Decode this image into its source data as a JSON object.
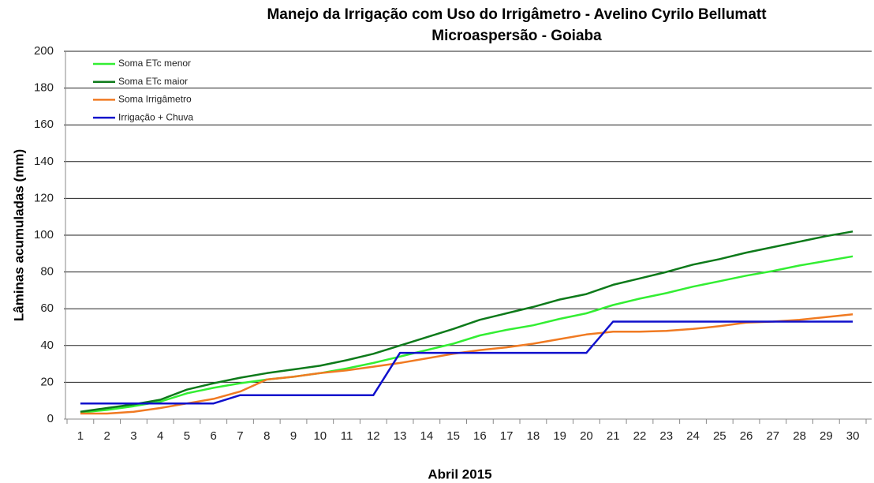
{
  "chart_data": {
    "type": "line",
    "title": "Manejo da Irrigação com Uso do Irrigâmetro - Avelino Cyrilo Bellumatt",
    "subtitle": "Microaspersão - Goiaba",
    "x_label": "Abril 2015",
    "y_label": "Lâminas acumuladas (mm)",
    "categories": [
      "1",
      "2",
      "3",
      "4",
      "5",
      "6",
      "7",
      "8",
      "9",
      "10",
      "11",
      "12",
      "13",
      "14",
      "15",
      "16",
      "17",
      "18",
      "19",
      "20",
      "21",
      "22",
      "23",
      "24",
      "25",
      "26",
      "27",
      "28",
      "29",
      "30"
    ],
    "series": [
      {
        "name": "Soma ETc menor",
        "color": "#33ee33",
        "values": [
          3.5,
          5,
          7,
          9.5,
          14,
          17,
          19.5,
          21.5,
          23,
          25,
          27.5,
          30.5,
          34,
          37.5,
          41,
          45.5,
          48.5,
          51,
          54.5,
          57.5,
          62,
          65.5,
          68.5,
          72,
          75,
          78,
          80.5,
          83.5,
          86,
          88.5
        ]
      },
      {
        "name": "Soma ETc maior",
        "color": "#0d7a1a",
        "values": [
          4,
          6,
          8,
          10.5,
          16,
          19.5,
          22.5,
          25,
          27,
          29,
          32,
          35.5,
          40,
          44.5,
          49,
          54,
          57.5,
          61,
          65,
          68,
          73,
          76.5,
          80,
          84,
          87,
          90.5,
          93.5,
          96.5,
          99.5,
          102
        ]
      },
      {
        "name": "Soma Irrigâmetro",
        "color": "#f07a22",
        "values": [
          3,
          3,
          4,
          6,
          8.5,
          11,
          15,
          21.5,
          23,
          25,
          26.5,
          28.5,
          30.5,
          33,
          35.5,
          37.5,
          39,
          41,
          43.5,
          46,
          47.5,
          47.5,
          48,
          49,
          50.5,
          52.5,
          53,
          54,
          55.5,
          57
        ]
      },
      {
        "name": "Irrigação + Chuva",
        "color": "#1010cc",
        "values": [
          8.5,
          8.5,
          8.5,
          8.5,
          8.5,
          8.5,
          13,
          13,
          13,
          13,
          13,
          13,
          36,
          36,
          36,
          36,
          36,
          36,
          36,
          36,
          53,
          53,
          53,
          53,
          53,
          53,
          53,
          53,
          53,
          53
        ]
      }
    ],
    "ylim": [
      0,
      200
    ],
    "yticks": [
      0,
      20,
      40,
      60,
      80,
      100,
      120,
      140,
      160,
      180,
      200
    ],
    "grid": true,
    "legend": "top-left"
  }
}
